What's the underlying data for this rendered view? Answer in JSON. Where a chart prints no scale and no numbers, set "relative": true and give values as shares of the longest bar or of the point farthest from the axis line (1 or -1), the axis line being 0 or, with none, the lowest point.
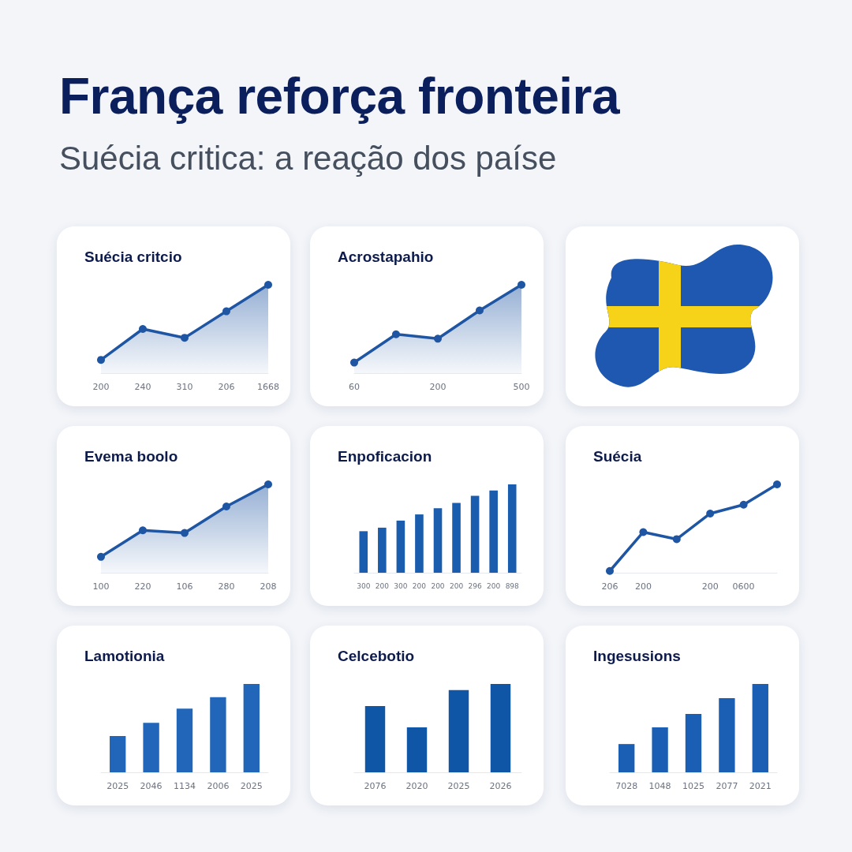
{
  "chart_data": [
    {
      "type": "other",
      "title": "França reforça fronteira",
      "subtitle": "Suécia critica: a reação dos paíse"
    },
    {
      "type": "area",
      "title": "Suécia critcio",
      "categories": [
        "200",
        "240",
        "310",
        "206",
        "1668"
      ],
      "values": [
        0.15,
        0.5,
        0.4,
        0.7,
        1
      ],
      "relative": true,
      "color": "#1f56a3",
      "marker": "circle",
      "line_style": "solid"
    },
    {
      "type": "area",
      "title": "Acrostapahio",
      "categories": [
        "60",
        null,
        "200",
        null,
        "500"
      ],
      "values": [
        0.12,
        0.44,
        0.39,
        0.71,
        1
      ],
      "relative": true,
      "color": "#1f56a3",
      "marker": "circle",
      "line_style": "solid"
    },
    {
      "type": "area",
      "title": "Evema boolo",
      "categories": [
        "100",
        "220",
        "106",
        "280",
        "208"
      ],
      "values": [
        0.18,
        0.48,
        0.45,
        0.75,
        1
      ],
      "relative": true,
      "color": "#1f56a3",
      "marker": "circle",
      "line_style": "solid"
    },
    {
      "type": "bar",
      "title": "Enpoficacion",
      "categories": [
        "300",
        "200",
        "300",
        "200",
        "200",
        "200",
        "296",
        "200",
        "898"
      ],
      "values": [
        0.47,
        0.51,
        0.59,
        0.66,
        0.73,
        0.79,
        0.87,
        0.93,
        1
      ],
      "relative": true,
      "color": "#1a5cad"
    },
    {
      "type": "line",
      "title": "Suécia",
      "categories": [
        "206",
        "200",
        null,
        "200",
        "0600",
        null
      ],
      "values": [
        0.02,
        0.46,
        0.38,
        0.67,
        0.77,
        1
      ],
      "relative": true,
      "color": "#1f56a3",
      "marker": "circle",
      "line_style": "solid"
    },
    {
      "type": "bar",
      "title": "Lamotionia",
      "categories": [
        "2025",
        "2046",
        "1134",
        "2006",
        "2025"
      ],
      "values": [
        0.41,
        0.56,
        0.72,
        0.85,
        1
      ],
      "relative": true,
      "color": "#2166b8"
    },
    {
      "type": "bar",
      "title": "Celcebotio",
      "categories": [
        "2076",
        "2020",
        "2025",
        "2026"
      ],
      "values": [
        0.75,
        0.51,
        0.93,
        1
      ],
      "relative": true,
      "color": "#0f56a6"
    },
    {
      "type": "bar",
      "title": "Ingesusions",
      "categories": [
        "7028",
        "1048",
        "1025",
        "2077",
        "2021"
      ],
      "values": [
        0.32,
        0.51,
        0.66,
        0.84,
        1
      ],
      "relative": true,
      "color": "#1a5fb4"
    }
  ]
}
